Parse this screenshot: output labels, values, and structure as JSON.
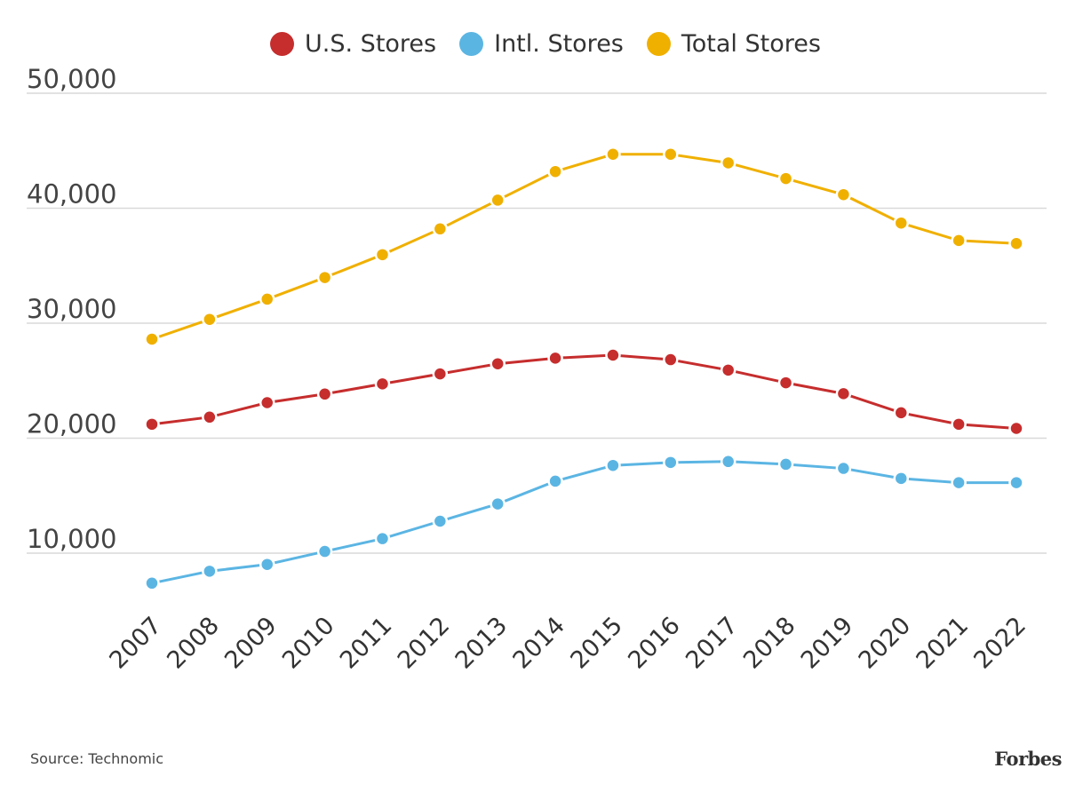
{
  "chart_data": {
    "type": "line",
    "title": "",
    "xlabel": "",
    "ylabel": "",
    "x": [
      "2007",
      "2008",
      "2009",
      "2010",
      "2011",
      "2012",
      "2013",
      "2014",
      "2015",
      "2016",
      "2017",
      "2018",
      "2019",
      "2020",
      "2021",
      "2022"
    ],
    "yticks": [
      10000,
      20000,
      30000,
      40000,
      50000
    ],
    "ytick_labels": [
      "10,000",
      "20,000",
      "30,000",
      "40,000",
      "50,000"
    ],
    "ylim": [
      5000,
      50000
    ],
    "grid": true,
    "legend_position": "top-center",
    "series": [
      {
        "name": "U.S. Stores",
        "color": "#c62d2d",
        "values": [
          21210,
          21830,
          23090,
          23840,
          24720,
          25590,
          26470,
          26960,
          27220,
          26830,
          25920,
          24820,
          23870,
          22210,
          21210,
          20850
        ]
      },
      {
        "name": "Intl. Stores",
        "color": "#5bb5e3",
        "values": [
          7390,
          8430,
          9020,
          10150,
          11260,
          12780,
          14280,
          16260,
          17630,
          17890,
          17970,
          17730,
          17370,
          16500,
          16130,
          16130
        ]
      },
      {
        "name": "Total Stores",
        "color": "#f0b000",
        "values": [
          28610,
          30330,
          32090,
          33970,
          35960,
          38200,
          40700,
          43190,
          44690,
          44690,
          43940,
          42580,
          41180,
          38710,
          37190,
          36930
        ]
      }
    ]
  },
  "source": "Source: Technomic",
  "logo": "Forbes"
}
